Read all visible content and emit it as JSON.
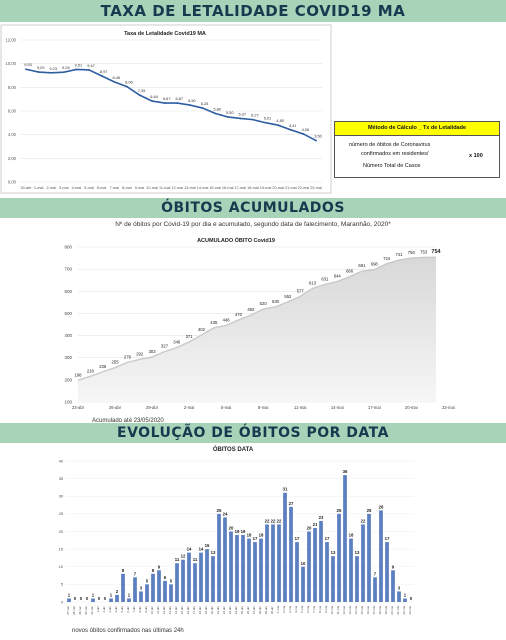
{
  "sections": {
    "lethality": "TAXA DE LETALIDADE COVID19 MA",
    "accumulated": "ÓBITOS ACUMULADOS",
    "evolution": "EVOLUÇÃO DE ÓBITOS POR DATA"
  },
  "method_box": {
    "header": "Método de Cálculo _ Tx de Letalidade",
    "line1": "número de óbitos de Coronavirus",
    "line2": "confirmados em residentes/",
    "line3": "Número Total de Casos",
    "multiplier": "x 100"
  },
  "accumulated_subtitle": "Nº de óbitos por Covid-19 por dia e acumulado, segundo data de falecimento, Maranhão, 2020*",
  "accumulated_note": "Acumulado até 23/05/2020",
  "daily_note": "novos óbitos confirmados nas últimas 24h",
  "colors": {
    "banner_bg": "#a7d3b9",
    "banner_text": "#173a4f",
    "line": "#2f5fa3",
    "bar": "#5b7fc0",
    "highlight": "#ffff00"
  },
  "chart_data": [
    {
      "type": "line",
      "title": "Taxa de Letalidade Covid19 MA",
      "x": [
        "30-abr",
        "1-mai",
        "2-mai",
        "3-mai",
        "4-mai",
        "5-mai",
        "6-mai",
        "7-mai",
        "8-mai",
        "9-mai",
        "10-mai",
        "11-mai",
        "12-mai",
        "13-mai",
        "14-mai",
        "15-mai",
        "16-mai",
        "17-mai",
        "18-mai",
        "19-mai",
        "20-mai",
        "21-mai",
        "22-mai",
        "23-mai"
      ],
      "values": [
        9.53,
        9.29,
        9.23,
        9.28,
        9.51,
        9.47,
        8.97,
        8.46,
        8.06,
        7.35,
        6.84,
        6.67,
        6.67,
        6.5,
        6.25,
        5.8,
        5.5,
        5.37,
        5.27,
        5.01,
        4.8,
        4.41,
        4.06,
        3.5
      ],
      "labels": [
        "9,53",
        "9,29",
        "9,23",
        "9,28",
        "9,51",
        "9,47",
        "8,97",
        "8,46",
        "8,06",
        "7,35",
        "6,84",
        "6,67",
        "6,67",
        "6,50",
        "6,25",
        "5,80",
        "5,50",
        "5,37",
        "5,27",
        "5,01",
        "4,80",
        "4,41",
        "4,06",
        "3,50"
      ],
      "yticks": [
        "0,00",
        "2,00",
        "4,00",
        "6,00",
        "8,00",
        "10,00",
        "12,00"
      ],
      "ylim": [
        0,
        12
      ]
    },
    {
      "type": "area",
      "title": "ACUMULADO ÓBITO Covid19",
      "x_ticks": [
        "23-abr",
        "26-abr",
        "29-abr",
        "2-mai",
        "5-mai",
        "8-mai",
        "11-mai",
        "14-mai",
        "17-mai",
        "20-mai",
        "23-mai"
      ],
      "values": [
        198,
        216,
        236,
        255,
        279,
        292,
        303,
        327,
        346,
        371,
        402,
        435,
        446,
        470,
        492,
        520,
        530,
        552,
        577,
        613,
        631,
        644,
        666,
        691,
        698,
        724,
        741,
        750,
        753,
        754
      ],
      "yticks": [
        "100",
        "200",
        "300",
        "400",
        "500",
        "600",
        "700",
        "800"
      ],
      "ylim": [
        100,
        800
      ]
    },
    {
      "type": "bar",
      "title": "ÓBITOS DATA",
      "categories": [
        "27-mar",
        "28-mar",
        "29-mar",
        "30-mar",
        "31-mar",
        "1-abr",
        "2-abr",
        "3-abr",
        "4-abr",
        "5-abr",
        "6-abr",
        "7-abr",
        "8-abr",
        "9-abr",
        "10-abr",
        "11-abr",
        "12-abr",
        "13-abr",
        "14-abr",
        "15-abr",
        "16-abr",
        "17-abr",
        "18-abr",
        "19-abr",
        "20-abr",
        "21-abr",
        "22-abr",
        "23-abr",
        "24-abr",
        "25-abr",
        "26-abr",
        "27-abr",
        "28-abr",
        "29-abr",
        "30-abr",
        "1-mai",
        "2-mai",
        "3-mai",
        "4-mai",
        "5-mai",
        "6-mai",
        "7-mai",
        "8-mai",
        "9-mai",
        "10-mai",
        "11-mai",
        "12-mai",
        "13-mai",
        "14-mai",
        "15-mai",
        "16-mai",
        "17-mai",
        "18-mai",
        "19-mai",
        "20-mai",
        "21-mai",
        "22-mai",
        "23-mai"
      ],
      "values": [
        1,
        0,
        0,
        0,
        1,
        0,
        0,
        1,
        2,
        8,
        1,
        7,
        3,
        5,
        8,
        9,
        6,
        5,
        11,
        12,
        14,
        11,
        14,
        15,
        13,
        25,
        24,
        20,
        19,
        19,
        18,
        17,
        18,
        22,
        22,
        22,
        31,
        27,
        17,
        10,
        20,
        21,
        23,
        17,
        13,
        25,
        36,
        18,
        13,
        22,
        25,
        7,
        26,
        17,
        9,
        3,
        1,
        0
      ],
      "yticks": [
        "0",
        "5",
        "10",
        "15",
        "20",
        "25",
        "30",
        "35",
        "40"
      ],
      "ylim": [
        0,
        40
      ]
    }
  ]
}
